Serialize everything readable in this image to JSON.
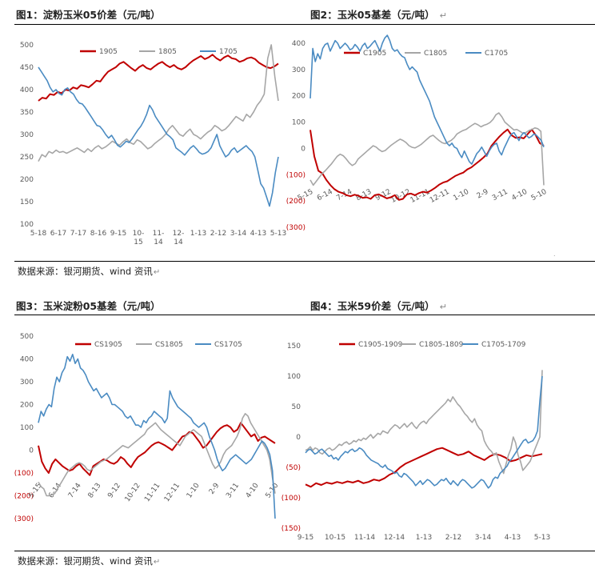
{
  "page": {
    "top_title_left": "图1：淀粉玉米05价差（元/吨）",
    "top_title_right": "图2：玉米05基差（元/吨）",
    "bottom_title_left": "图3：玉米淀粉05基差（元/吨）",
    "bottom_title_right": "图4：玉米59价差（元/吨）",
    "return_mark": "↵",
    "source_top": "数据来源：银河期货、wind 资讯",
    "source_bottom": "数据来源：银河期货、wind 资讯"
  },
  "colors": {
    "red": "#c00000",
    "gray": "#a6a6a6",
    "blue": "#4a8bc2",
    "neg_label": "#c00000"
  },
  "chart_data": [
    {
      "type": "line",
      "ylim": [
        100,
        500
      ],
      "yticks": [
        "500",
        "450",
        "400",
        "350",
        "300",
        "250",
        "200",
        "150",
        "100"
      ],
      "xticks": [
        "5-18",
        "6-17",
        "7-17",
        "8-16",
        "9-15",
        "10-\n15",
        "11-\n14",
        "12-\n14",
        "1-13",
        "2-12",
        "3-14",
        "4-13",
        "5-13"
      ],
      "series": [
        {
          "name": "1905",
          "color": "#c00000",
          "values": [
            375,
            382,
            380,
            390,
            388,
            395,
            392,
            400,
            398,
            405,
            402,
            410,
            408,
            405,
            412,
            420,
            418,
            430,
            440,
            445,
            450,
            458,
            462,
            455,
            448,
            442,
            450,
            455,
            448,
            445,
            452,
            458,
            462,
            455,
            450,
            455,
            448,
            445,
            450,
            458,
            465,
            470,
            475,
            468,
            472,
            478,
            470,
            465,
            472,
            476,
            470,
            468,
            462,
            465,
            470,
            472,
            468,
            460,
            455,
            450,
            448,
            452,
            458
          ]
        },
        {
          "name": "1805",
          "color": "#a6a6a6",
          "values": [
            240,
            255,
            250,
            262,
            258,
            265,
            260,
            262,
            258,
            262,
            266,
            270,
            265,
            260,
            268,
            262,
            270,
            275,
            268,
            272,
            278,
            285,
            280,
            276,
            284,
            290,
            282,
            278,
            288,
            284,
            276,
            268,
            272,
            280,
            286,
            292,
            300,
            312,
            320,
            310,
            300,
            296,
            305,
            312,
            300,
            296,
            290,
            298,
            305,
            310,
            320,
            315,
            308,
            312,
            320,
            330,
            340,
            335,
            330,
            345,
            338,
            350,
            365,
            375,
            390,
            470,
            500,
            430,
            375
          ]
        },
        {
          "name": "1705",
          "color": "#4a8bc2",
          "values": [
            450,
            440,
            430,
            420,
            405,
            395,
            400,
            392,
            388,
            400,
            404,
            395,
            390,
            378,
            370,
            368,
            360,
            350,
            340,
            330,
            320,
            318,
            310,
            300,
            292,
            298,
            288,
            276,
            272,
            278,
            285,
            282,
            290,
            300,
            310,
            318,
            330,
            345,
            365,
            355,
            340,
            330,
            320,
            310,
            300,
            295,
            288,
            270,
            265,
            260,
            254,
            262,
            270,
            275,
            268,
            260,
            256,
            258,
            262,
            270,
            285,
            300,
            275,
            262,
            250,
            255,
            265,
            270,
            260,
            265,
            270,
            275,
            268,
            262,
            250,
            220,
            190,
            180,
            160,
            140,
            170,
            215,
            250
          ]
        }
      ]
    },
    {
      "type": "line",
      "ylim": [
        -300,
        400
      ],
      "yticks": [
        "400",
        "300",
        "200",
        "100",
        "0",
        "(100)",
        "(200)",
        "(300)"
      ],
      "xticks": [
        "5-15",
        "6-14",
        "7-14",
        "8-13",
        "9-12",
        "10-12",
        "11-11",
        "12-11",
        "1-10",
        "2-9",
        "3-11",
        "4-10",
        "5-10"
      ],
      "series": [
        {
          "name": "C1905",
          "color": "#c00000",
          "values": [
            70,
            -30,
            -85,
            -95,
            -120,
            -140,
            -155,
            -165,
            -170,
            -178,
            -182,
            -176,
            -180,
            -188,
            -186,
            -192,
            -178,
            -175,
            -182,
            -190,
            -186,
            -178,
            -196,
            -192,
            -175,
            -172,
            -178,
            -170,
            -165,
            -168,
            -160,
            -150,
            -138,
            -130,
            -125,
            -115,
            -105,
            -98,
            -92,
            -80,
            -72,
            -60,
            -48,
            -35,
            -20,
            10,
            28,
            45,
            60,
            72,
            50,
            40,
            42,
            38,
            55,
            72,
            50,
            20,
            10
          ]
        },
        {
          "name": "C1805",
          "color": "#a6a6a6",
          "values": [
            -120,
            -140,
            -125,
            -110,
            -95,
            -85,
            -72,
            -60,
            -45,
            -30,
            -22,
            -28,
            -40,
            -55,
            -65,
            -58,
            -40,
            -30,
            -20,
            -10,
            0,
            10,
            5,
            -5,
            -12,
            -8,
            2,
            12,
            20,
            28,
            35,
            30,
            22,
            10,
            4,
            2,
            8,
            15,
            25,
            35,
            45,
            50,
            40,
            30,
            22,
            18,
            24,
            30,
            40,
            55,
            62,
            68,
            72,
            80,
            88,
            95,
            90,
            82,
            88,
            92,
            98,
            110,
            128,
            135,
            120,
            100,
            90,
            80,
            70,
            72,
            65,
            58,
            60,
            68,
            72,
            78,
            75,
            65,
            -140
          ]
        },
        {
          "name": "C1705",
          "color": "#4a8bc2",
          "values": [
            190,
            380,
            330,
            360,
            340,
            380,
            395,
            400,
            370,
            390,
            410,
            400,
            380,
            390,
            400,
            390,
            375,
            380,
            395,
            385,
            370,
            390,
            400,
            380,
            388,
            400,
            410,
            390,
            370,
            400,
            420,
            430,
            410,
            380,
            370,
            375,
            360,
            350,
            345,
            320,
            300,
            310,
            300,
            290,
            260,
            240,
            220,
            200,
            180,
            150,
            120,
            100,
            80,
            60,
            40,
            20,
            10,
            20,
            5,
            0,
            -20,
            -35,
            -10,
            -30,
            -50,
            -60,
            -40,
            -20,
            -10,
            5,
            -12,
            -30,
            -10,
            5,
            15,
            20,
            -10,
            -25,
            0,
            20,
            40,
            55,
            60,
            45,
            30,
            50,
            60,
            50,
            40,
            45,
            55,
            50,
            40,
            30,
            5
          ]
        }
      ]
    },
    {
      "type": "line",
      "ylim": [
        -300,
        500
      ],
      "yticks": [
        "500",
        "400",
        "300",
        "200",
        "100",
        "0",
        "(100)",
        "(200)",
        "(300)"
      ],
      "xticks": [
        "5-15",
        "6-14",
        "7-14",
        "8-13",
        "9-12",
        "10-12",
        "11-11",
        "12-11",
        "1-10",
        "2-9",
        "3-11",
        "4-10",
        "5-10"
      ],
      "series": [
        {
          "name": "CS1905",
          "color": "#c00000",
          "values": [
            20,
            -50,
            -80,
            -100,
            -60,
            -40,
            -55,
            -70,
            -80,
            -90,
            -85,
            -70,
            -60,
            -80,
            -95,
            -110,
            -70,
            -60,
            -50,
            -40,
            -45,
            -55,
            -60,
            -50,
            -30,
            -40,
            -60,
            -75,
            -50,
            -30,
            -20,
            -10,
            5,
            20,
            30,
            35,
            28,
            20,
            10,
            0,
            20,
            40,
            60,
            65,
            80,
            75,
            55,
            35,
            10,
            20,
            40,
            60,
            80,
            95,
            105,
            110,
            100,
            80,
            90,
            120,
            100,
            80,
            60,
            70,
            40,
            55,
            60,
            50,
            40,
            30
          ]
        },
        {
          "name": "CS1805",
          "color": "#a6a6a6",
          "values": [
            -140,
            -160,
            -170,
            -200,
            -200,
            -195,
            -190,
            -170,
            -150,
            -130,
            -110,
            -90,
            -80,
            -70,
            -60,
            -55,
            -60,
            -70,
            -85,
            -90,
            -80,
            -70,
            -60,
            -50,
            -45,
            -40,
            -30,
            -20,
            -10,
            0,
            10,
            20,
            15,
            10,
            20,
            30,
            40,
            50,
            60,
            70,
            90,
            100,
            110,
            120,
            105,
            90,
            80,
            70,
            60,
            50,
            40,
            30,
            20,
            40,
            60,
            70,
            80,
            90,
            80,
            70,
            60,
            30,
            0,
            -30,
            -60,
            -80,
            -70,
            -50,
            -20,
            0,
            10,
            20,
            40,
            60,
            90,
            140,
            160,
            150,
            120,
            100,
            80,
            60,
            40,
            20,
            0,
            -40,
            -120,
            -190
          ]
        },
        {
          "name": "CS1705",
          "color": "#4a8bc2",
          "values": [
            120,
            170,
            150,
            180,
            200,
            190,
            270,
            320,
            300,
            340,
            360,
            410,
            390,
            420,
            380,
            400,
            360,
            350,
            330,
            300,
            280,
            260,
            270,
            250,
            230,
            240,
            250,
            230,
            200,
            200,
            190,
            180,
            170,
            150,
            140,
            150,
            130,
            110,
            110,
            100,
            130,
            120,
            140,
            150,
            170,
            160,
            150,
            140,
            120,
            140,
            260,
            230,
            210,
            190,
            180,
            170,
            160,
            150,
            140,
            120,
            110,
            100,
            110,
            120,
            100,
            60,
            30,
            0,
            -40,
            -70,
            -90,
            -80,
            -60,
            -40,
            -30,
            -20,
            -30,
            -40,
            -50,
            -60,
            -50,
            -40,
            -20,
            0,
            20,
            40,
            30,
            10,
            -20,
            -90,
            -300
          ]
        }
      ]
    },
    {
      "type": "line",
      "ylim": [
        -150,
        150
      ],
      "yticks": [
        "150",
        "100",
        "50",
        "0",
        "(50)",
        "(100)",
        "(150)"
      ],
      "xticks": [
        "9-15",
        "10-15",
        "11-14",
        "12-14",
        "1-13",
        "2-12",
        "3-14",
        "4-13",
        "5-13"
      ],
      "series": [
        {
          "name": "C1905-1909",
          "color": "#c00000",
          "values": [
            -78,
            -82,
            -76,
            -79,
            -75,
            -77,
            -74,
            -76,
            -73,
            -75,
            -72,
            -76,
            -74,
            -70,
            -72,
            -68,
            -62,
            -58,
            -50,
            -44,
            -40,
            -36,
            -32,
            -28,
            -24,
            -20,
            -18,
            -22,
            -26,
            -30,
            -28,
            -24,
            -30,
            -34,
            -38,
            -32,
            -28,
            -30,
            -34,
            -40,
            -38,
            -34,
            -30,
            -32,
            -30,
            -28
          ]
        },
        {
          "name": "C1805-1809",
          "color": "#a6a6a6",
          "values": [
            -22,
            -20,
            -16,
            -22,
            -18,
            -20,
            -26,
            -28,
            -24,
            -20,
            -18,
            -22,
            -20,
            -16,
            -12,
            -14,
            -10,
            -8,
            -12,
            -10,
            -6,
            -8,
            -4,
            -6,
            -2,
            -4,
            0,
            4,
            -2,
            2,
            6,
            4,
            10,
            8,
            6,
            12,
            16,
            20,
            18,
            14,
            18,
            22,
            16,
            20,
            24,
            18,
            14,
            20,
            24,
            26,
            22,
            28,
            32,
            36,
            40,
            44,
            48,
            52,
            56,
            62,
            58,
            66,
            60,
            54,
            50,
            44,
            38,
            34,
            28,
            24,
            30,
            20,
            14,
            10,
            -6,
            -14,
            -20,
            -24,
            -30,
            -26,
            -40,
            -50,
            -60,
            -45,
            -30,
            -20,
            0,
            -10,
            -30,
            -40,
            -55,
            -50,
            -45,
            -40,
            -30,
            -20,
            -10,
            0,
            110
          ]
        },
        {
          "name": "C1705-1709",
          "color": "#4a8bc2",
          "values": [
            -26,
            -22,
            -20,
            -24,
            -28,
            -26,
            -22,
            -20,
            -24,
            -28,
            -32,
            -30,
            -36,
            -34,
            -38,
            -32,
            -28,
            -24,
            -26,
            -22,
            -20,
            -24,
            -22,
            -18,
            -20,
            -24,
            -30,
            -34,
            -38,
            -40,
            -42,
            -44,
            -48,
            -50,
            -46,
            -52,
            -54,
            -56,
            -60,
            -58,
            -64,
            -66,
            -60,
            -62,
            -66,
            -70,
            -74,
            -80,
            -76,
            -72,
            -78,
            -74,
            -70,
            -72,
            -76,
            -80,
            -78,
            -74,
            -70,
            -72,
            -68,
            -74,
            -78,
            -72,
            -76,
            -80,
            -74,
            -70,
            -72,
            -76,
            -80,
            -84,
            -82,
            -78,
            -74,
            -70,
            -72,
            -78,
            -84,
            -80,
            -70,
            -66,
            -68,
            -60,
            -56,
            -52,
            -48,
            -40,
            -36,
            -30,
            -24,
            -18,
            -12,
            -6,
            -4,
            -10,
            -8,
            -6,
            0,
            10,
            60,
            100
          ]
        }
      ]
    }
  ]
}
